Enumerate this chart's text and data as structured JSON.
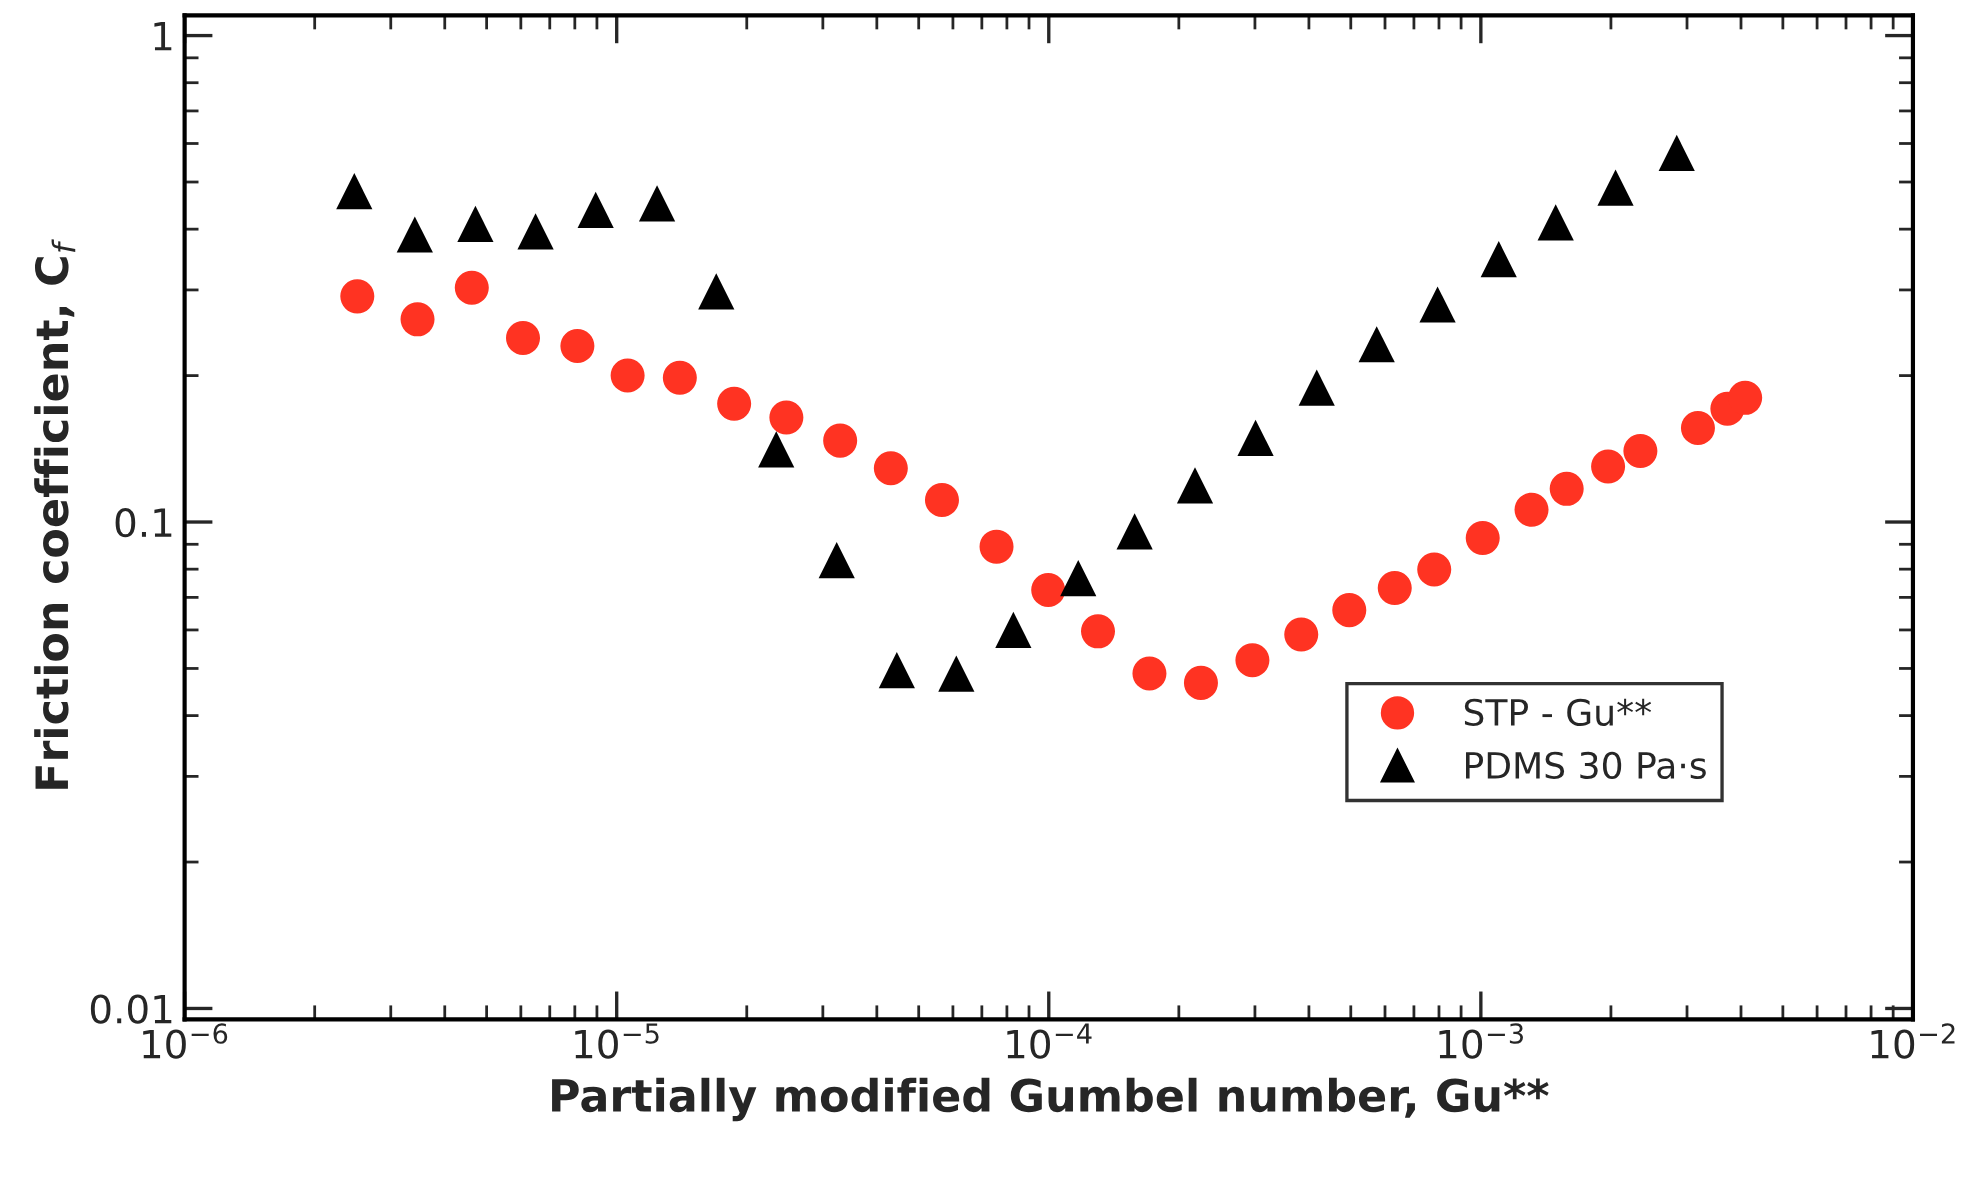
{
  "chart_data": {
    "type": "scatter",
    "xlabel": "Partially modified Gumbel number, Gu**",
    "ylabel": "Friction coefficient, C$_{f}$",
    "log": "xy",
    "legend": "lower right",
    "grid": false,
    "xlim": [
      1e-06,
      0.01
    ],
    "ylim": [
      0.0095,
      1.1
    ],
    "xticks": [
      {
        "value": 1e-06,
        "label": "10$^{−6}$"
      },
      {
        "value": 1e-05,
        "label": "10$^{−5}$"
      },
      {
        "value": 0.0001,
        "label": "10$^{−4}$"
      },
      {
        "value": 0.001,
        "label": "10$^{−3}$"
      },
      {
        "value": 0.01,
        "label": "10$^{−2}$"
      }
    ],
    "yticks": [
      0.01,
      0.1,
      1
    ],
    "series": [
      {
        "name": "STP - Gu**",
        "color": "#ff3322",
        "marker": "circle",
        "x": [
          2.51e-06,
          3.46e-06,
          4.62e-06,
          6.07e-06,
          8.11e-06,
          1.06e-05,
          1.4e-05,
          1.87e-05,
          2.47e-05,
          3.29e-05,
          4.31e-05,
          5.66e-05,
          7.57e-05,
          9.97e-05,
          0.00013,
          0.000171,
          0.000225,
          0.000296,
          0.000384,
          0.000496,
          0.000632,
          0.00078,
          0.00101,
          0.00131,
          0.00158,
          0.00197,
          0.00234,
          0.00318,
          0.00372,
          0.00409
        ],
        "values": [
          0.291,
          0.261,
          0.303,
          0.239,
          0.23,
          0.2,
          0.198,
          0.175,
          0.164,
          0.147,
          0.129,
          0.111,
          0.089,
          0.0725,
          0.0596,
          0.0488,
          0.0467,
          0.052,
          0.0587,
          0.0659,
          0.0732,
          0.0799,
          0.0927,
          0.106,
          0.117,
          0.13,
          0.14,
          0.156,
          0.171,
          0.18
        ]
      },
      {
        "name": "PDMS 30 Pa·s",
        "color": "#000000",
        "marker": "triangle",
        "x": [
          2.47e-06,
          3.41e-06,
          4.71e-06,
          6.49e-06,
          8.94e-06,
          1.24e-05,
          1.7e-05,
          2.34e-05,
          3.23e-05,
          4.45e-05,
          6.11e-05,
          8.28e-05,
          0.000117,
          0.000158,
          0.000218,
          0.000301,
          0.000417,
          0.000574,
          0.000794,
          0.0011,
          0.00149,
          0.00205,
          0.00284
        ],
        "values": [
          0.479,
          0.39,
          0.41,
          0.396,
          0.438,
          0.452,
          0.298,
          0.141,
          0.0835,
          0.0496,
          0.0488,
          0.06,
          0.0767,
          0.0957,
          0.119,
          0.149,
          0.189,
          0.232,
          0.28,
          0.347,
          0.413,
          0.487,
          0.574
        ]
      }
    ]
  }
}
